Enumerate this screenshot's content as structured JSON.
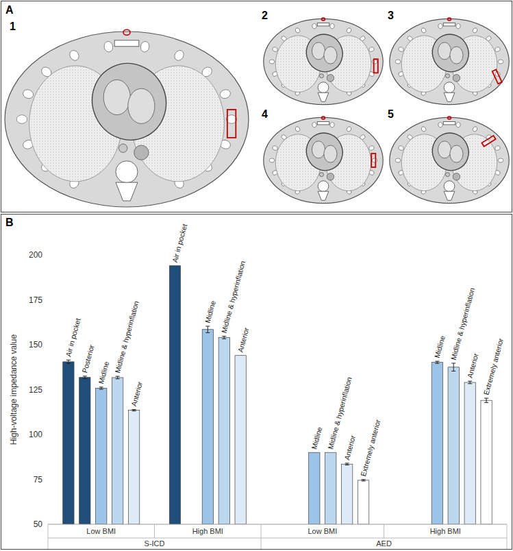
{
  "figure": {
    "panel_a": {
      "letter": "A",
      "views": [
        "1",
        "2",
        "3",
        "4",
        "5"
      ]
    },
    "panel_b": {
      "letter": "B"
    }
  },
  "chart_data": {
    "type": "bar",
    "y_label": "High-voltage impedance value",
    "ylim": [
      50,
      200
    ],
    "yticks": [
      50,
      75,
      100,
      125,
      150,
      175,
      200
    ],
    "grid": false,
    "groups": [
      {
        "name": "S-ICD",
        "subgroups": [
          {
            "name": "Low BMI",
            "categories": [
              "Air in pocket",
              "Posterior",
              "Midline",
              "Midline & hyperinflation",
              "Anterior"
            ],
            "values": [
              140.5,
              131.8,
              125.8,
              131.7,
              113.5
            ],
            "errors": [
              1.0,
              0.7,
              0.6,
              0.7,
              0.4
            ],
            "colors": [
              "#1f4e79",
              "#1f4e79",
              "#9dc3e6",
              "#bdd7ee",
              "#deebf7"
            ]
          },
          {
            "name": "High BMI",
            "categories": [
              "Air in pocket",
              null,
              "Midline",
              "Midline & hyperinflation",
              "Anterior"
            ],
            "values": [
              194,
              null,
              158.5,
              154,
              144
            ],
            "errors": [
              null,
              null,
              1.8,
              0.7,
              null
            ],
            "colors": [
              "#1f4e79",
              null,
              "#9dc3e6",
              "#bdd7ee",
              "#deebf7"
            ]
          }
        ]
      },
      {
        "name": "AED",
        "subgroups": [
          {
            "name": "Low BMI",
            "categories": [
              null,
              null,
              "Midline",
              "Midline & hyperinflation",
              "Anterior",
              "Extremely anterior"
            ],
            "values": [
              null,
              null,
              90,
              90,
              83.5,
              74.5
            ],
            "errors": [
              null,
              null,
              null,
              null,
              0.5,
              0.4
            ],
            "colors": [
              null,
              null,
              "#9dc3e6",
              "#bdd7ee",
              "#deebf7",
              "#ffffff"
            ]
          },
          {
            "name": "High BMI",
            "categories": [
              null,
              null,
              "Midline",
              "Midline & hyperinflation",
              "Anterior",
              "Extremely anterior"
            ],
            "values": [
              null,
              null,
              140.2,
              137.5,
              129,
              119
            ],
            "errors": [
              null,
              null,
              0.6,
              2.2,
              0.7,
              1.2
            ],
            "colors": [
              null,
              null,
              "#9dc3e6",
              "#bdd7ee",
              "#deebf7",
              "#ffffff"
            ]
          }
        ]
      }
    ]
  }
}
